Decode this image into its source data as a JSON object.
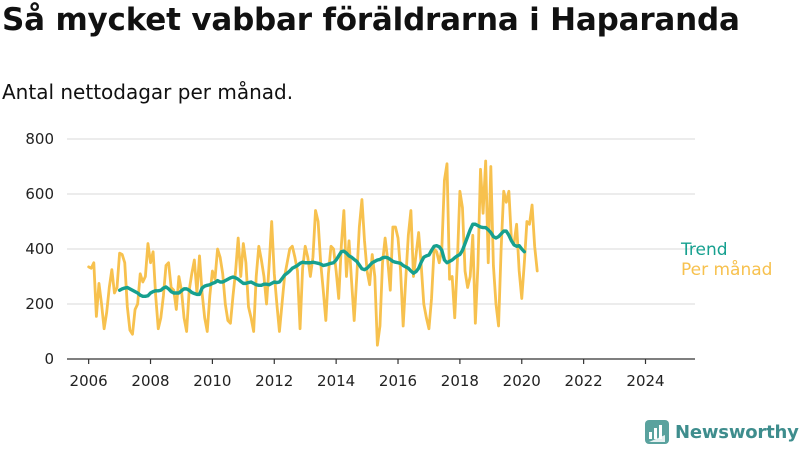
{
  "title": "Så mycket vabbar föräldrarna i Haparanda",
  "subtitle": "Antal nettodagar per månad.",
  "brand": "Newsworthy",
  "colors": {
    "monthly": "#f7c14e",
    "trend": "#16a08f",
    "axis": "#333333",
    "grid": "#d9d9d9",
    "brand": "#3e8d8d"
  },
  "chart_data": {
    "type": "line",
    "title": "Så mycket vabbar föräldrarna i Haparanda",
    "subtitle": "Antal nettodagar per månad.",
    "xlabel": "",
    "ylabel": "",
    "ylim": [
      0,
      800
    ],
    "yticks": [
      0,
      200,
      400,
      600,
      800
    ],
    "xticks": [
      "2006",
      "2008",
      "2010",
      "2012",
      "2014",
      "2016",
      "2018",
      "2020",
      "2022",
      "2024"
    ],
    "grid": true,
    "legend": "right-of-line-ends",
    "x_start": "2006-01",
    "frequency": "monthly",
    "series": [
      {
        "name": "Per månad",
        "color": "#f7c14e",
        "values": [
          335,
          330,
          350,
          155,
          275,
          200,
          110,
          170,
          260,
          325,
          240,
          260,
          385,
          380,
          350,
          190,
          105,
          90,
          180,
          200,
          310,
          280,
          300,
          420,
          350,
          390,
          230,
          110,
          150,
          230,
          340,
          350,
          260,
          250,
          180,
          300,
          250,
          150,
          100,
          250,
          310,
          360,
          240,
          375,
          240,
          150,
          100,
          230,
          320,
          290,
          400,
          370,
          310,
          200,
          140,
          130,
          230,
          320,
          440,
          300,
          420,
          350,
          190,
          150,
          100,
          300,
          410,
          360,
          300,
          200,
          340,
          500,
          310,
          200,
          100,
          200,
          300,
          350,
          400,
          410,
          370,
          320,
          110,
          330,
          410,
          370,
          300,
          370,
          540,
          500,
          350,
          250,
          140,
          310,
          410,
          400,
          320,
          220,
          410,
          540,
          300,
          430,
          280,
          140,
          300,
          480,
          580,
          430,
          320,
          270,
          380,
          300,
          50,
          120,
          350,
          440,
          360,
          250,
          480,
          480,
          440,
          320,
          120,
          290,
          450,
          540,
          300,
          380,
          460,
          340,
          200,
          150,
          110,
          220,
          400,
          390,
          350,
          400,
          650,
          710,
          290,
          300,
          150,
          350,
          610,
          550,
          320,
          260,
          300,
          450,
          130,
          340,
          690,
          530,
          720,
          350,
          700,
          340,
          200,
          120,
          400,
          610,
          570,
          610,
          430,
          420,
          490,
          320,
          220,
          350,
          500,
          490,
          560,
          410,
          320
        ],
        "x_start": "2006-01"
      },
      {
        "name": "Trend",
        "color": "#16a08f",
        "values": [
          250,
          255,
          258,
          260,
          255,
          250,
          245,
          240,
          232,
          228,
          228,
          230,
          240,
          245,
          248,
          248,
          250,
          258,
          262,
          255,
          245,
          240,
          240,
          240,
          248,
          255,
          255,
          250,
          242,
          238,
          235,
          235,
          258,
          265,
          268,
          270,
          275,
          278,
          285,
          280,
          280,
          285,
          290,
          295,
          298,
          295,
          290,
          282,
          275,
          275,
          278,
          280,
          275,
          270,
          268,
          268,
          272,
          272,
          270,
          275,
          280,
          278,
          280,
          292,
          305,
          312,
          320,
          330,
          335,
          340,
          348,
          352,
          350,
          350,
          350,
          352,
          350,
          348,
          345,
          340,
          342,
          345,
          348,
          350,
          360,
          375,
          390,
          392,
          385,
          375,
          370,
          362,
          355,
          342,
          328,
          325,
          330,
          340,
          350,
          355,
          360,
          362,
          368,
          370,
          368,
          362,
          355,
          352,
          350,
          348,
          340,
          335,
          330,
          320,
          312,
          318,
          330,
          352,
          370,
          375,
          378,
          395,
          410,
          412,
          408,
          395,
          360,
          350,
          355,
          360,
          368,
          375,
          380,
          395,
          420,
          445,
          470,
          490,
          490,
          485,
          480,
          478,
          478,
          470,
          460,
          445,
          440,
          445,
          455,
          465,
          465,
          450,
          430,
          415,
          410,
          412,
          400,
          390
        ],
        "x_start": "2007-01"
      }
    ]
  }
}
